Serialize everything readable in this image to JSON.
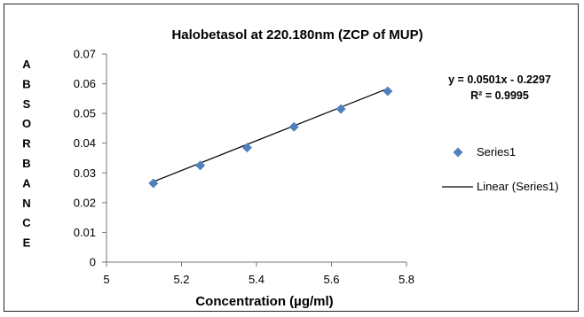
{
  "chart_data": {
    "type": "scatter",
    "title": "Halobetasol  at 220.180nm  (ZCP of MUP)",
    "xlabel": "Concentration (µg/ml)",
    "ylabel_letters": [
      "A",
      "B",
      "S",
      "O",
      "R",
      "B",
      "A",
      "N",
      "C",
      "E"
    ],
    "xlim": [
      5,
      5.8
    ],
    "ylim": [
      0,
      0.07
    ],
    "xticks": [
      5,
      5.2,
      5.4,
      5.6,
      5.8
    ],
    "xtick_labels": [
      "5",
      "5.2",
      "5.4",
      "5.6",
      "5.8"
    ],
    "yticks": [
      0,
      0.01,
      0.02,
      0.03,
      0.04,
      0.05,
      0.06,
      0.07
    ],
    "ytick_labels": [
      "0",
      "0.01",
      "0.02",
      "0.03",
      "0.04",
      "0.05",
      "0.06",
      "0.07"
    ],
    "series": [
      {
        "name": "Series1",
        "color": "#4f81bd",
        "marker": "diamond",
        "x": [
          5.125,
          5.25,
          5.375,
          5.5,
          5.625,
          5.75
        ],
        "y": [
          0.0265,
          0.0325,
          0.0385,
          0.0455,
          0.0515,
          0.0575
        ]
      }
    ],
    "trendline": {
      "name": "Linear (Series1)",
      "color": "#000000",
      "slope": 0.0501,
      "intercept": -0.2297,
      "x_range": [
        5.125,
        5.75
      ],
      "equation": "y = 0.0501x - 0.2297",
      "r_squared": "R² = 0.9995"
    },
    "legend_position": "right",
    "grid": false
  }
}
